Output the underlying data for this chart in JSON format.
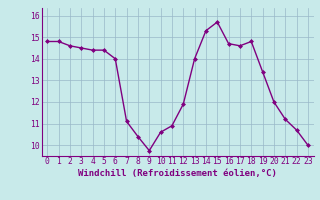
{
  "x": [
    0,
    1,
    2,
    3,
    4,
    5,
    6,
    7,
    8,
    9,
    10,
    11,
    12,
    13,
    14,
    15,
    16,
    17,
    18,
    19,
    20,
    21,
    22,
    23
  ],
  "y": [
    14.8,
    14.8,
    14.6,
    14.5,
    14.4,
    14.4,
    14.0,
    11.1,
    10.4,
    9.75,
    10.6,
    10.9,
    11.9,
    14.0,
    15.3,
    15.7,
    14.7,
    14.6,
    14.8,
    13.4,
    12.0,
    11.2,
    10.7,
    10.0
  ],
  "line_color": "#800080",
  "marker": "D",
  "marker_size": 2,
  "bg_color": "#c8eaea",
  "grid_color": "#9ab8c8",
  "xlabel": "Windchill (Refroidissement éolien,°C)",
  "ylabel_ticks": [
    10,
    11,
    12,
    13,
    14,
    15,
    16
  ],
  "xlabel_ticks": [
    0,
    1,
    2,
    3,
    4,
    5,
    6,
    7,
    8,
    9,
    10,
    11,
    12,
    13,
    14,
    15,
    16,
    17,
    18,
    19,
    20,
    21,
    22,
    23
  ],
  "ylim": [
    9.5,
    16.35
  ],
  "xlim": [
    -0.5,
    23.5
  ],
  "tick_color": "#800080",
  "label_color": "#800080",
  "xlabel_fontsize": 6.5,
  "tick_fontsize": 5.8,
  "line_width": 1.0
}
